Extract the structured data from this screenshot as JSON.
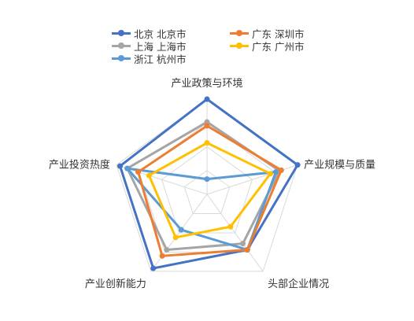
{
  "chart_data": {
    "type": "radar",
    "axes": [
      "产业政策与环境",
      "产业规模与质量",
      "头部企业情况",
      "产业创新能力",
      "产业投资热度"
    ],
    "max": 1,
    "rings": 4,
    "legend_position": "top",
    "series": [
      {
        "name": "北京 北京市",
        "color": "#4472C4",
        "values": [
          1.0,
          1.0,
          0.72,
          0.96,
          0.96
        ]
      },
      {
        "name": "上海 上海市",
        "color": "#A5A5A5",
        "values": [
          0.76,
          0.8,
          0.64,
          0.72,
          0.88
        ]
      },
      {
        "name": "浙江 杭州市",
        "color": "#5B9BD5",
        "values": [
          0.16,
          0.76,
          0.72,
          0.46,
          0.88
        ]
      },
      {
        "name": "广东 深圳市",
        "color": "#ED7D31",
        "values": [
          0.72,
          0.82,
          0.72,
          0.8,
          0.76
        ]
      },
      {
        "name": "广东 广州市",
        "color": "#FFC000",
        "values": [
          0.54,
          0.7,
          0.42,
          0.56,
          0.64
        ]
      }
    ]
  }
}
